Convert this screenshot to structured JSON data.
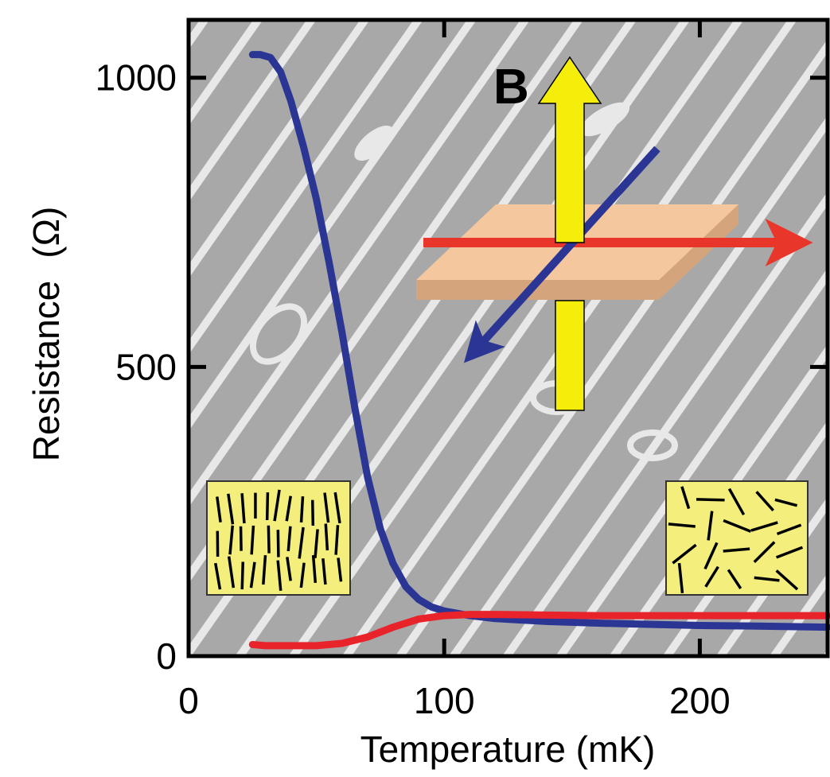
{
  "chart_data": {
    "type": "line",
    "xlabel": "Temperature (mK)",
    "ylabel": "Resistance",
    "ylabel_unit": "(Ω)",
    "xlim": [
      0,
      250
    ],
    "ylim": [
      0,
      1100
    ],
    "xticks": [
      {
        "value": 0,
        "label": "0"
      },
      {
        "value": 100,
        "label": "100"
      },
      {
        "value": 200,
        "label": "200"
      }
    ],
    "yticks": [
      {
        "value": 0,
        "label": "0"
      },
      {
        "value": 500,
        "label": "500"
      },
      {
        "value": 1000,
        "label": "1000"
      }
    ],
    "grid": false,
    "series": [
      {
        "color": "#2b3594",
        "x": [
          25,
          28,
          32,
          36,
          40,
          45,
          50,
          55,
          60,
          65,
          70,
          75,
          80,
          85,
          90,
          95,
          100,
          110,
          120,
          140,
          160,
          180,
          200,
          220,
          250
        ],
        "y": [
          1040,
          1040,
          1035,
          1010,
          960,
          880,
          790,
          680,
          560,
          430,
          310,
          220,
          160,
          120,
          98,
          85,
          78,
          70,
          65,
          60,
          57,
          55,
          53,
          52,
          50
        ]
      },
      {
        "color": "#e8232a",
        "x": [
          25,
          30,
          40,
          50,
          60,
          70,
          80,
          90,
          100,
          110,
          120,
          140,
          160,
          180,
          200,
          220,
          250
        ],
        "y": [
          20,
          18,
          18,
          18,
          22,
          33,
          50,
          64,
          70,
          72,
          72,
          71,
          70,
          70,
          70,
          70,
          70
        ]
      }
    ],
    "annotations": {
      "field_label": "B",
      "colors": {
        "field_arrow": "#f5ee0a",
        "sample_top": "#f4c79f",
        "sample_side": "#d4a57c",
        "red_arrow": "#e8372a",
        "blue_arrow": "#2b3594",
        "inset_fill": "#f4ee7c",
        "background_stripes": "#bdbdbd"
      }
    }
  }
}
